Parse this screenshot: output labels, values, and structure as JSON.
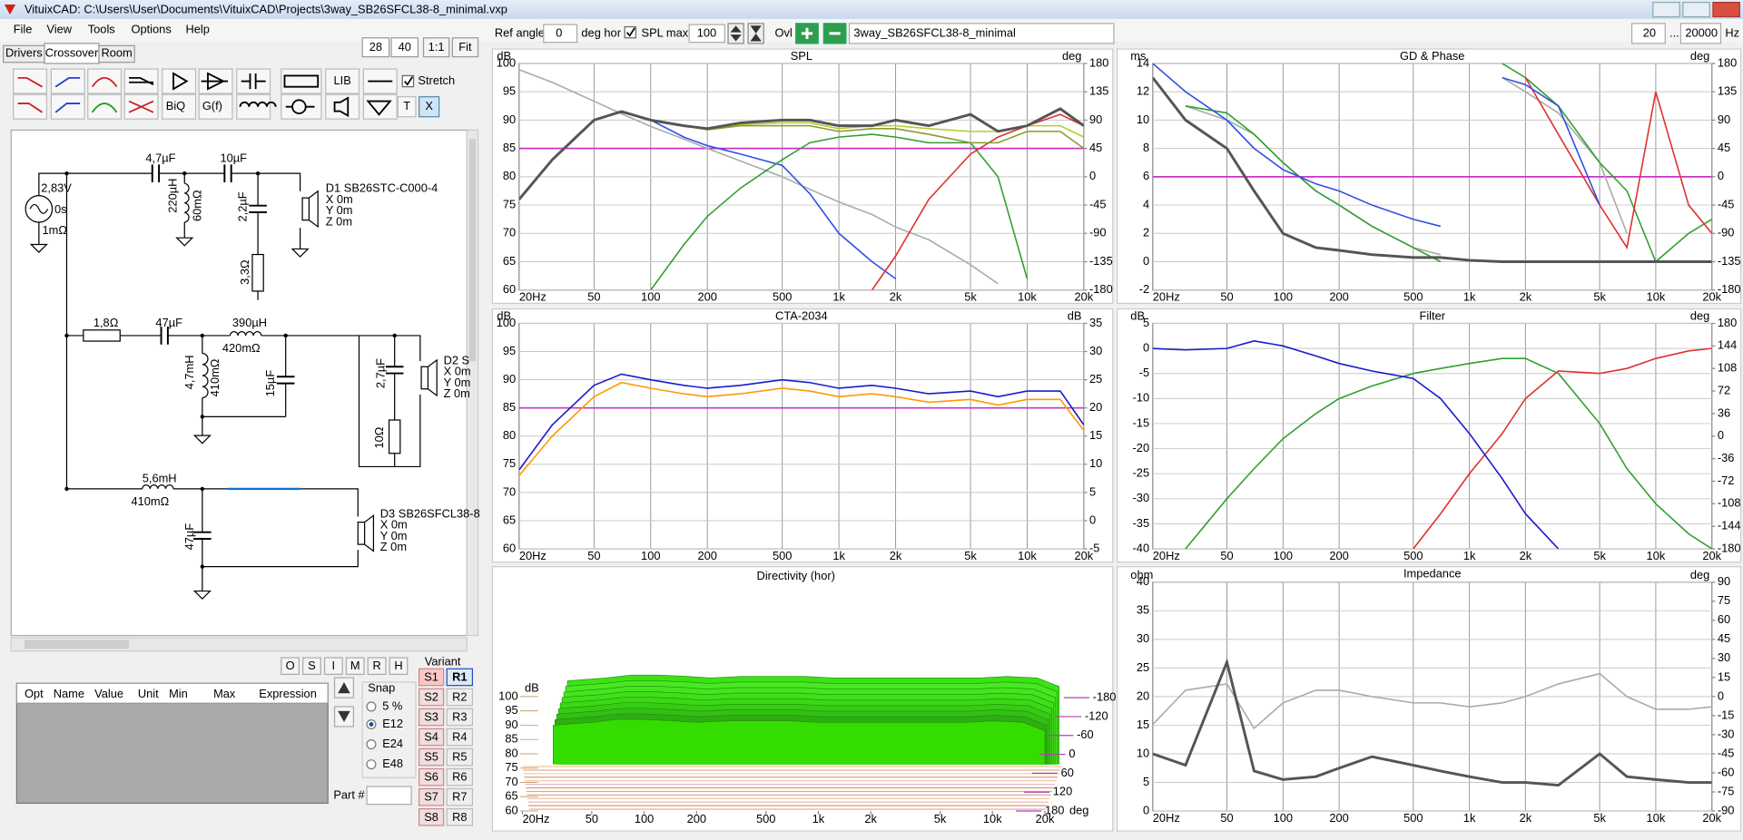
{
  "window": {
    "title": "VituixCAD: C:\\Users\\User\\Documents\\VituixCAD\\Projects\\3way_SB26SFCL38-8_minimal.vxp"
  },
  "menu": [
    "File",
    "View",
    "Tools",
    "Options",
    "Help"
  ],
  "tabs": [
    "Drivers",
    "Crossover",
    "Room"
  ],
  "zoom": {
    "inputs": [
      "28",
      "40"
    ],
    "buttons": [
      "1:1",
      "Fit"
    ]
  },
  "toolbar": {
    "lib": "LIB",
    "stretch": "Stretch",
    "biq": "BiQ",
    "gf": "G(f)",
    "t": "T",
    "x": "X"
  },
  "schematic": {
    "labels": [
      "2,83V",
      "0s",
      "1mΩ",
      "4,7µF",
      "10µF",
      "220µH",
      "60mΩ",
      "2,2µF",
      "3,3Ω",
      "D1 SB26STC-C000-4",
      "X 0m",
      "Y 0m",
      "Z 0m",
      "1,8Ω",
      "47µF",
      "390µH",
      "420mΩ",
      "4,7mH",
      "410mΩ",
      "15µF",
      "2,7µF",
      "10Ω",
      "D2 S",
      "X 0m",
      "Y 0m",
      "Z 0m",
      "5,6mH",
      "410mΩ",
      "47µF",
      "D3 SB26SFCL38-8",
      "X 0m",
      "Y 0m",
      "Z 0m"
    ]
  },
  "flags": [
    "O",
    "S",
    "I",
    "M",
    "R",
    "H"
  ],
  "parameters": {
    "headers": [
      "Opt",
      "Name",
      "Value",
      "Unit",
      "Min",
      "Max",
      "Expression"
    ]
  },
  "snap": {
    "title": "Snap",
    "options": [
      "5 %",
      "E12",
      "E24",
      "E48"
    ],
    "selected": 1
  },
  "variant": {
    "title": "Variant",
    "s": [
      "S1",
      "S2",
      "S3",
      "S4",
      "S5",
      "S6",
      "S7",
      "S8"
    ],
    "r": [
      "R1",
      "R2",
      "R3",
      "R4",
      "R5",
      "R6",
      "R7",
      "R8"
    ]
  },
  "part": {
    "label": "Part #"
  },
  "controls": {
    "ref_angle_label": "Ref angle",
    "ref_angle": "0",
    "ref_angle_unit": "deg hor",
    "spl_max_label": "SPL max",
    "spl_max": "100",
    "ovl": "Ovl",
    "project": "3way_SB26SFCL38-8_minimal",
    "f_min": "20",
    "range_sep": "...",
    "f_max": "20000",
    "f_unit": "Hz"
  },
  "chart_data": [
    {
      "type": "line",
      "title": "SPL",
      "y_unit": "dB",
      "y2_unit": "deg",
      "x": [
        20,
        30,
        50,
        70,
        100,
        150,
        200,
        300,
        500,
        700,
        1000,
        1500,
        2000,
        3000,
        5000,
        7000,
        10000,
        15000,
        20000
      ],
      "xlim": [
        20,
        20000
      ],
      "xticks": [
        {
          "value": 20,
          "label": "20Hz"
        },
        50,
        100,
        200,
        500,
        {
          "value": 1000,
          "label": "1k"
        },
        {
          "value": 2000,
          "label": "2k"
        },
        {
          "value": 5000,
          "label": "5k"
        },
        {
          "value": 10000,
          "label": "10k"
        },
        {
          "value": 20000,
          "label": "20k"
        }
      ],
      "ylim": [
        60,
        100
      ],
      "yticks": [
        60,
        65,
        70,
        75,
        80,
        85,
        90,
        95,
        100
      ],
      "y2lim": [
        -180,
        180
      ],
      "y2ticks": [
        -180,
        -135,
        -90,
        -45,
        0,
        45,
        90,
        135,
        180
      ],
      "ref_line": {
        "value": 85,
        "color": "#cc33cc"
      },
      "series": [
        {
          "color": "#aaaaaa",
          "axis": "y2",
          "values": [
            170,
            150,
            120,
            100,
            80,
            60,
            45,
            25,
            0,
            -20,
            -40,
            -60,
            -80,
            -100,
            -140,
            -170,
            null,
            null,
            null
          ]
        },
        {
          "color": "#3050e0",
          "values": [
            76,
            83,
            90,
            91.5,
            90,
            87,
            85.5,
            84,
            82,
            77,
            70,
            65,
            62,
            null,
            null,
            null,
            null,
            null,
            null
          ]
        },
        {
          "color": "#30a030",
          "values": [
            null,
            null,
            null,
            null,
            60,
            68,
            73,
            78,
            83,
            86,
            87,
            87.5,
            87,
            86,
            86,
            80,
            62,
            null,
            null
          ]
        },
        {
          "color": "#e03030",
          "values": [
            null,
            null,
            null,
            null,
            null,
            null,
            null,
            null,
            null,
            null,
            null,
            60,
            66,
            76,
            84,
            87,
            89,
            91,
            89
          ]
        },
        {
          "color": "#b5cc30",
          "values": [
            76,
            83,
            90,
            91.5,
            90,
            89,
            88.5,
            89.2,
            89.5,
            89.5,
            88.5,
            89,
            89,
            88.5,
            88,
            88,
            89,
            89,
            87
          ]
        },
        {
          "color": "#8a9a2a",
          "values": [
            76,
            83,
            90,
            91.5,
            90,
            89,
            88.3,
            89,
            89,
            89,
            88,
            88.5,
            88.5,
            87.5,
            86,
            86,
            88,
            88,
            85
          ]
        },
        {
          "color": "#555555",
          "values": [
            76,
            83,
            90,
            91.5,
            90,
            89,
            88.5,
            89.5,
            90,
            90,
            89,
            89,
            90,
            89,
            91,
            88,
            89,
            92,
            89
          ]
        }
      ]
    },
    {
      "type": "line",
      "title": "GD & Phase",
      "y_unit": "ms",
      "y2_unit": "deg",
      "x": [
        20,
        30,
        50,
        70,
        100,
        150,
        200,
        300,
        500,
        700,
        1000,
        1500,
        2000,
        3000,
        5000,
        7000,
        10000,
        15000,
        20000
      ],
      "xlim": [
        20,
        20000
      ],
      "xticks": [
        {
          "value": 20,
          "label": "20Hz"
        },
        50,
        100,
        200,
        500,
        {
          "value": 1000,
          "label": "1k"
        },
        {
          "value": 2000,
          "label": "2k"
        },
        {
          "value": 5000,
          "label": "5k"
        },
        {
          "value": 10000,
          "label": "10k"
        },
        {
          "value": 20000,
          "label": "20k"
        }
      ],
      "ylim": [
        -2,
        14
      ],
      "yticks": [
        -2,
        0,
        2,
        4,
        6,
        8,
        10,
        12,
        14
      ],
      "y2lim": [
        -180,
        180
      ],
      "y2ticks": [
        -180,
        -135,
        -90,
        -45,
        0,
        45,
        90,
        135,
        180
      ],
      "ref_line": {
        "value": 6,
        "color": "#cc33cc"
      },
      "series": [
        {
          "color": "#aaaaaa",
          "values": [
            null,
            11,
            10,
            9,
            7,
            5,
            4,
            2.5,
            1,
            0.5,
            null,
            13,
            12,
            10.5,
            7,
            2,
            null,
            null,
            null
          ]
        },
        {
          "color": "#30a030",
          "values": [
            null,
            11,
            10.5,
            9,
            7,
            5,
            4,
            2.5,
            1,
            0,
            null,
            14,
            13,
            11,
            7,
            5,
            0,
            2,
            3
          ]
        },
        {
          "color": "#e03030",
          "values": [
            null,
            null,
            null,
            null,
            null,
            null,
            null,
            null,
            null,
            null,
            null,
            null,
            13,
            9,
            4,
            1,
            12,
            4,
            2
          ]
        },
        {
          "color": "#3050e0",
          "values": [
            14,
            12,
            10,
            8,
            6.5,
            5.5,
            5,
            4,
            3,
            2.5,
            null,
            13,
            12.5,
            11,
            4,
            null,
            null,
            null,
            null
          ]
        },
        {
          "color": "#555555",
          "values": [
            13,
            10,
            8,
            5,
            2,
            1,
            0.8,
            0.5,
            0.3,
            0.3,
            0.1,
            0,
            0,
            0,
            0,
            0,
            0,
            0,
            0
          ]
        }
      ]
    },
    {
      "type": "line",
      "title": "CTA-2034",
      "y_unit": "dB",
      "y2_unit": "dB",
      "x": [
        20,
        30,
        50,
        70,
        100,
        150,
        200,
        300,
        500,
        700,
        1000,
        1500,
        2000,
        3000,
        5000,
        7000,
        10000,
        15000,
        20000
      ],
      "xlim": [
        20,
        20000
      ],
      "xticks": [
        {
          "value": 20,
          "label": "20Hz"
        },
        50,
        100,
        200,
        500,
        {
          "value": 1000,
          "label": "1k"
        },
        {
          "value": 2000,
          "label": "2k"
        },
        {
          "value": 5000,
          "label": "5k"
        },
        {
          "value": 10000,
          "label": "10k"
        },
        {
          "value": 20000,
          "label": "20k"
        }
      ],
      "ylim": [
        60,
        100
      ],
      "yticks": [
        60,
        65,
        70,
        75,
        80,
        85,
        90,
        95,
        100
      ],
      "y2lim": [
        -5,
        35
      ],
      "y2ticks": [
        -5,
        0,
        5,
        10,
        15,
        20,
        25,
        30,
        35
      ],
      "ref_line": {
        "value": 85,
        "color": "#cc33cc"
      },
      "series": [
        {
          "color": "#ff9900",
          "values": [
            73,
            80,
            87,
            89.5,
            88.5,
            87.5,
            87,
            87.5,
            88.5,
            88,
            87,
            87.5,
            87,
            86,
            86.5,
            85.5,
            86.5,
            86.5,
            81
          ]
        },
        {
          "color": "#1a1acc",
          "values": [
            74,
            82,
            89,
            91,
            90,
            89,
            88.5,
            89,
            90,
            89.5,
            88.5,
            89,
            88.5,
            87.5,
            88,
            87,
            88,
            88,
            82
          ]
        }
      ]
    },
    {
      "type": "line",
      "title": "Filter",
      "y_unit": "dB",
      "y2_unit": "deg",
      "x": [
        20,
        30,
        50,
        70,
        100,
        150,
        200,
        300,
        500,
        700,
        1000,
        1500,
        2000,
        3000,
        5000,
        7000,
        10000,
        15000,
        20000
      ],
      "xlim": [
        20,
        20000
      ],
      "xticks": [
        {
          "value": 20,
          "label": "20Hz"
        },
        50,
        100,
        200,
        500,
        {
          "value": 1000,
          "label": "1k"
        },
        {
          "value": 2000,
          "label": "2k"
        },
        {
          "value": 5000,
          "label": "5k"
        },
        {
          "value": 10000,
          "label": "10k"
        },
        {
          "value": 20000,
          "label": "20k"
        }
      ],
      "ylim": [
        -40,
        5
      ],
      "yticks": [
        -40,
        -35,
        -30,
        -25,
        -20,
        -15,
        -10,
        -5,
        0,
        5
      ],
      "y2lim": [
        -180,
        180
      ],
      "y2ticks": [
        -180,
        -144,
        -108,
        -72,
        -36,
        0,
        36,
        72,
        108,
        144,
        180
      ],
      "series": [
        {
          "color": "#30a030",
          "values": [
            null,
            -40,
            -30,
            -24,
            -18,
            -13,
            -10,
            -7.5,
            -5,
            -4,
            -3,
            -2,
            -2,
            -5,
            -15,
            -24,
            -31,
            -37,
            -40
          ]
        },
        {
          "color": "#e03030",
          "values": [
            null,
            null,
            null,
            null,
            null,
            null,
            null,
            null,
            -40,
            -33,
            -25,
            -17,
            -10,
            -4.5,
            -5,
            -4,
            -2,
            -0.5,
            0
          ]
        },
        {
          "color": "#1a1acc",
          "values": [
            0,
            -0.3,
            0,
            1.5,
            0.5,
            -1.5,
            -3,
            -4.5,
            -6,
            -10,
            -17,
            -26,
            -33,
            -40,
            null,
            null,
            null,
            null,
            null
          ]
        }
      ]
    },
    {
      "type": "area",
      "title": "Directivity (hor)",
      "y_unit": "dB",
      "x": [
        20,
        30,
        50,
        70,
        100,
        150,
        200,
        300,
        500,
        700,
        1000,
        1500,
        2000,
        3000,
        5000,
        7000,
        10000,
        15000,
        20000
      ],
      "values": [
        null,
        90,
        91,
        92,
        92,
        91.5,
        91,
        91.5,
        91.5,
        91.5,
        91,
        91,
        91,
        91,
        91,
        91,
        91.5,
        91,
        88
      ],
      "color": "#33dd00",
      "xlim": [
        20,
        20000
      ],
      "xticks": [
        {
          "value": 20,
          "label": "20Hz"
        },
        50,
        100,
        200,
        500,
        {
          "value": 1000,
          "label": "1k"
        },
        {
          "value": 2000,
          "label": "2k"
        },
        {
          "value": 5000,
          "label": "5k"
        },
        {
          "value": 10000,
          "label": "10k"
        },
        {
          "value": 20000,
          "label": "20k"
        }
      ],
      "ylim": [
        60,
        100
      ],
      "yticks": [
        60,
        65,
        70,
        75,
        80,
        85,
        90,
        95,
        100
      ],
      "angles": {
        "lim": [
          -180,
          180
        ],
        "ticks": [
          -180,
          -120,
          -60,
          0,
          60,
          120,
          180
        ],
        "unit": "deg"
      }
    },
    {
      "type": "line",
      "title": "Impedance",
      "y_unit": "ohm",
      "y2_unit": "deg",
      "x": [
        20,
        30,
        50,
        70,
        100,
        150,
        200,
        300,
        500,
        700,
        1000,
        1500,
        2000,
        3000,
        5000,
        7000,
        10000,
        15000,
        20000
      ],
      "xlim": [
        20,
        20000
      ],
      "xticks": [
        {
          "value": 20,
          "label": "20Hz"
        },
        50,
        100,
        200,
        500,
        {
          "value": 1000,
          "label": "1k"
        },
        {
          "value": 2000,
          "label": "2k"
        },
        {
          "value": 5000,
          "label": "5k"
        },
        {
          "value": 10000,
          "label": "10k"
        },
        {
          "value": 20000,
          "label": "20k"
        }
      ],
      "ylim": [
        0,
        40
      ],
      "yticks": [
        0,
        5,
        10,
        15,
        20,
        25,
        30,
        35,
        40
      ],
      "y2lim": [
        -90,
        90
      ],
      "y2ticks": [
        -90,
        -75,
        -60,
        -45,
        -30,
        -15,
        0,
        15,
        30,
        45,
        60,
        75,
        90
      ],
      "series": [
        {
          "color": "#aaaaaa",
          "axis": "y2",
          "values": [
            -22,
            5,
            10,
            -25,
            -5,
            5,
            5,
            0,
            -5,
            -5,
            -8,
            -5,
            0,
            10,
            18,
            0,
            -10,
            -10,
            -8
          ]
        },
        {
          "color": "#555555",
          "values": [
            10,
            8,
            26,
            7,
            5.5,
            6,
            7.5,
            9.5,
            8,
            7,
            6,
            5,
            5,
            4.5,
            10,
            6,
            5.5,
            5,
            5
          ]
        }
      ]
    }
  ]
}
